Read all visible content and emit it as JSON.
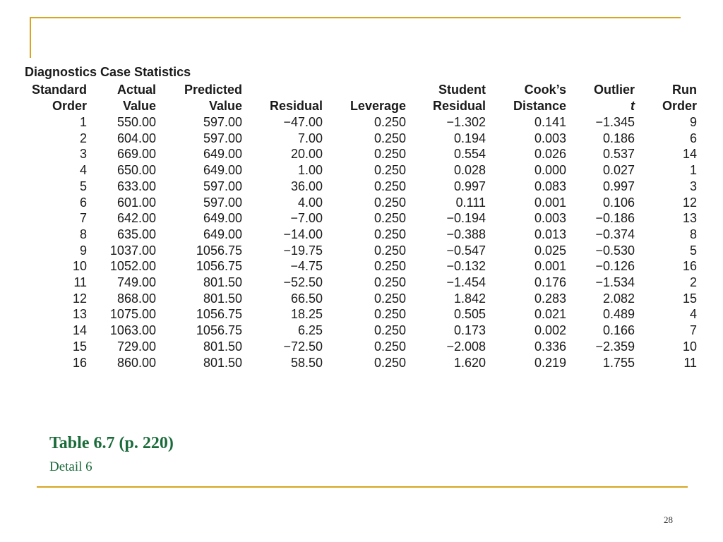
{
  "table_title": "Diagnostics Case Statistics",
  "headers": [
    [
      "Standard",
      "Order"
    ],
    [
      "Actual",
      "Value"
    ],
    [
      "Predicted",
      "Value"
    ],
    [
      "",
      "Residual"
    ],
    [
      "",
      "Leverage"
    ],
    [
      "Student",
      "Residual"
    ],
    [
      "Cook’s",
      "Distance"
    ],
    [
      "Outlier",
      "t"
    ],
    [
      "Run",
      "Order"
    ]
  ],
  "rows": [
    [
      "1",
      "550.00",
      "597.00",
      "−47.00",
      "0.250",
      "−1.302",
      "0.141",
      "−1.345",
      "9"
    ],
    [
      "2",
      "604.00",
      "597.00",
      "7.00",
      "0.250",
      "0.194",
      "0.003",
      "0.186",
      "6"
    ],
    [
      "3",
      "669.00",
      "649.00",
      "20.00",
      "0.250",
      "0.554",
      "0.026",
      "0.537",
      "14"
    ],
    [
      "4",
      "650.00",
      "649.00",
      "1.00",
      "0.250",
      "0.028",
      "0.000",
      "0.027",
      "1"
    ],
    [
      "5",
      "633.00",
      "597.00",
      "36.00",
      "0.250",
      "0.997",
      "0.083",
      "0.997",
      "3"
    ],
    [
      "6",
      "601.00",
      "597.00",
      "4.00",
      "0.250",
      "0.111",
      "0.001",
      "0.106",
      "12"
    ],
    [
      "7",
      "642.00",
      "649.00",
      "−7.00",
      "0.250",
      "−0.194",
      "0.003",
      "−0.186",
      "13"
    ],
    [
      "8",
      "635.00",
      "649.00",
      "−14.00",
      "0.250",
      "−0.388",
      "0.013",
      "−0.374",
      "8"
    ],
    [
      "9",
      "1037.00",
      "1056.75",
      "−19.75",
      "0.250",
      "−0.547",
      "0.025",
      "−0.530",
      "5"
    ],
    [
      "10",
      "1052.00",
      "1056.75",
      "−4.75",
      "0.250",
      "−0.132",
      "0.001",
      "−0.126",
      "16"
    ],
    [
      "11",
      "749.00",
      "801.50",
      "−52.50",
      "0.250",
      "−1.454",
      "0.176",
      "−1.534",
      "2"
    ],
    [
      "12",
      "868.00",
      "801.50",
      "66.50",
      "0.250",
      "1.842",
      "0.283",
      "2.082",
      "15"
    ],
    [
      "13",
      "1075.00",
      "1056.75",
      "18.25",
      "0.250",
      "0.505",
      "0.021",
      "0.489",
      "4"
    ],
    [
      "14",
      "1063.00",
      "1056.75",
      "6.25",
      "0.250",
      "0.173",
      "0.002",
      "0.166",
      "7"
    ],
    [
      "15",
      "729.00",
      "801.50",
      "−72.50",
      "0.250",
      "−2.008",
      "0.336",
      "−2.359",
      "10"
    ],
    [
      "16",
      "860.00",
      "801.50",
      "58.50",
      "0.250",
      "1.620",
      "0.219",
      "1.755",
      "11"
    ]
  ],
  "caption": {
    "title": "Table 6.7  (p. 220)",
    "subtitle": "Detail 6"
  },
  "page_number": "28",
  "colors": {
    "accent_rule": "#d9a520",
    "caption_green": "#1a6b3a",
    "text": "#1a1a1a"
  }
}
